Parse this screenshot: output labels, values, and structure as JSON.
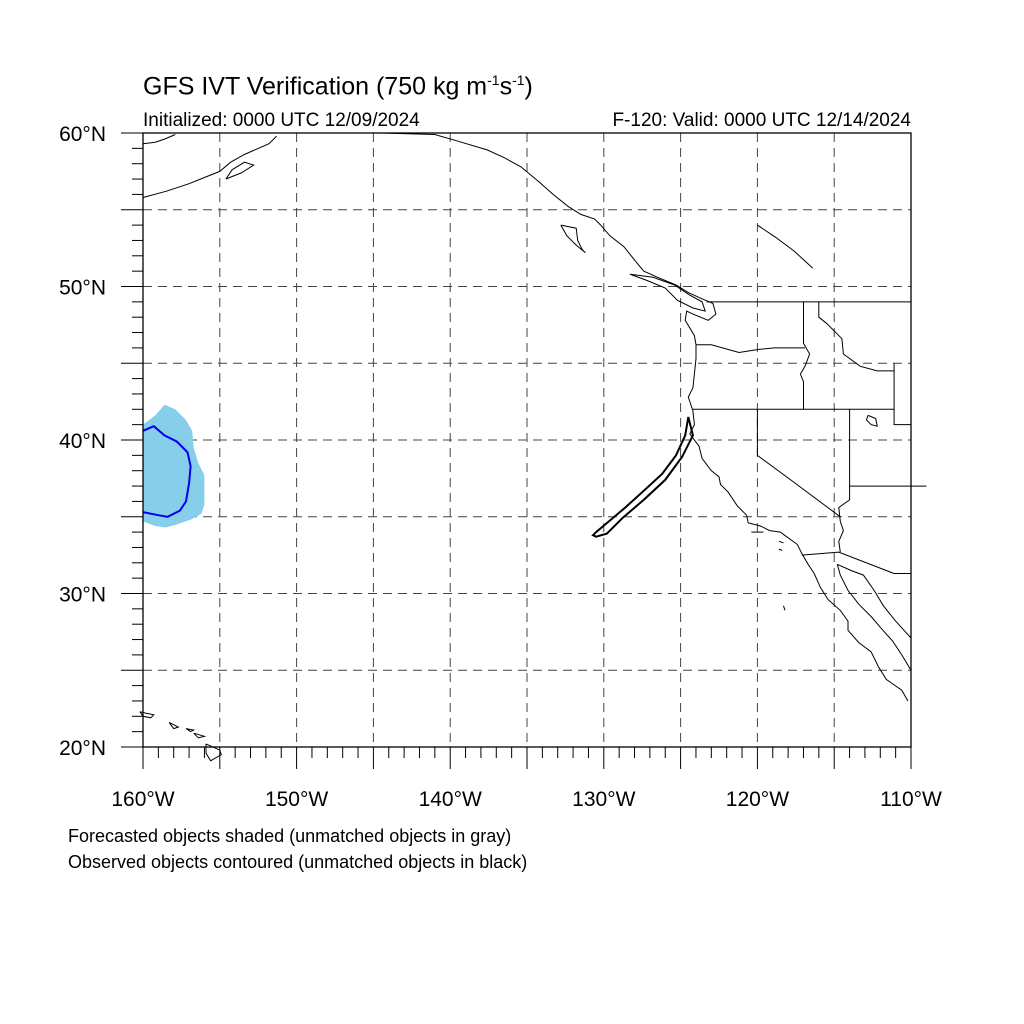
{
  "header": {
    "title_main": "GFS IVT Verification (750 kg m",
    "title_exp1": "-1",
    "title_mid": "s",
    "title_exp2": "-1",
    "title_end": ")",
    "initialized": "Initialized: 0000 UTC 12/09/2024",
    "valid": "F-120: Valid: 0000 UTC 12/14/2024"
  },
  "map": {
    "lon_range": [
      -160,
      -110
    ],
    "lat_range": [
      20,
      60
    ],
    "lon_labels": [
      "160°W",
      "150°W",
      "140°W",
      "130°W",
      "120°W",
      "110°W"
    ],
    "lat_labels": [
      "60°N",
      "50°N",
      "40°N",
      "30°N",
      "20°N"
    ],
    "grid_spacing_deg": 5,
    "colors": {
      "forecast_shade": "#87ceeb",
      "forecast_matched_contour": "#0000ee",
      "observed_unmatched": "#000000"
    }
  },
  "objects": {
    "forecast_shaded": [
      [
        [
          -158.6,
          42.3
        ],
        [
          -157.9,
          42.0
        ],
        [
          -157.2,
          41.3
        ],
        [
          -156.8,
          40.6
        ],
        [
          -156.7,
          39.5
        ],
        [
          -156.4,
          38.5
        ],
        [
          -156.0,
          37.7
        ],
        [
          -156.0,
          35.8
        ],
        [
          -156.2,
          35.2
        ],
        [
          -156.9,
          34.8
        ],
        [
          -157.8,
          34.5
        ],
        [
          -158.5,
          34.3
        ],
        [
          -159.2,
          34.4
        ],
        [
          -160,
          34.7
        ],
        [
          -160,
          41.0
        ],
        [
          -159.2,
          41.6
        ]
      ]
    ],
    "forecast_matched_contour": [
      [
        [
          -160,
          40.6
        ],
        [
          -159.3,
          40.9
        ],
        [
          -158.6,
          40.3
        ],
        [
          -157.8,
          39.9
        ],
        [
          -157.1,
          39.2
        ],
        [
          -156.9,
          38.3
        ],
        [
          -157.0,
          37.2
        ],
        [
          -157.2,
          36.0
        ],
        [
          -157.6,
          35.4
        ],
        [
          -158.4,
          35.0
        ],
        [
          -159.0,
          35.1
        ],
        [
          -160,
          35.3
        ]
      ]
    ],
    "observed_unmatched_contour": [
      [
        [
          -124.5,
          41.5
        ],
        [
          -124.7,
          40.3
        ],
        [
          -125.3,
          39.0
        ],
        [
          -126.2,
          37.8
        ],
        [
          -127.5,
          36.6
        ],
        [
          -128.6,
          35.6
        ],
        [
          -129.9,
          34.5
        ],
        [
          -130.5,
          34.0
        ],
        [
          -130.7,
          33.8
        ],
        [
          -130.5,
          33.7
        ],
        [
          -129.8,
          33.9
        ],
        [
          -128.8,
          34.9
        ],
        [
          -127.4,
          36.1
        ],
        [
          -126.0,
          37.4
        ],
        [
          -124.9,
          38.9
        ],
        [
          -124.2,
          40.3
        ]
      ]
    ]
  },
  "footer": {
    "line1": "Forecasted objects shaded (unmatched objects in gray)",
    "line2": "Observed objects contoured (unmatched objects in black)"
  }
}
